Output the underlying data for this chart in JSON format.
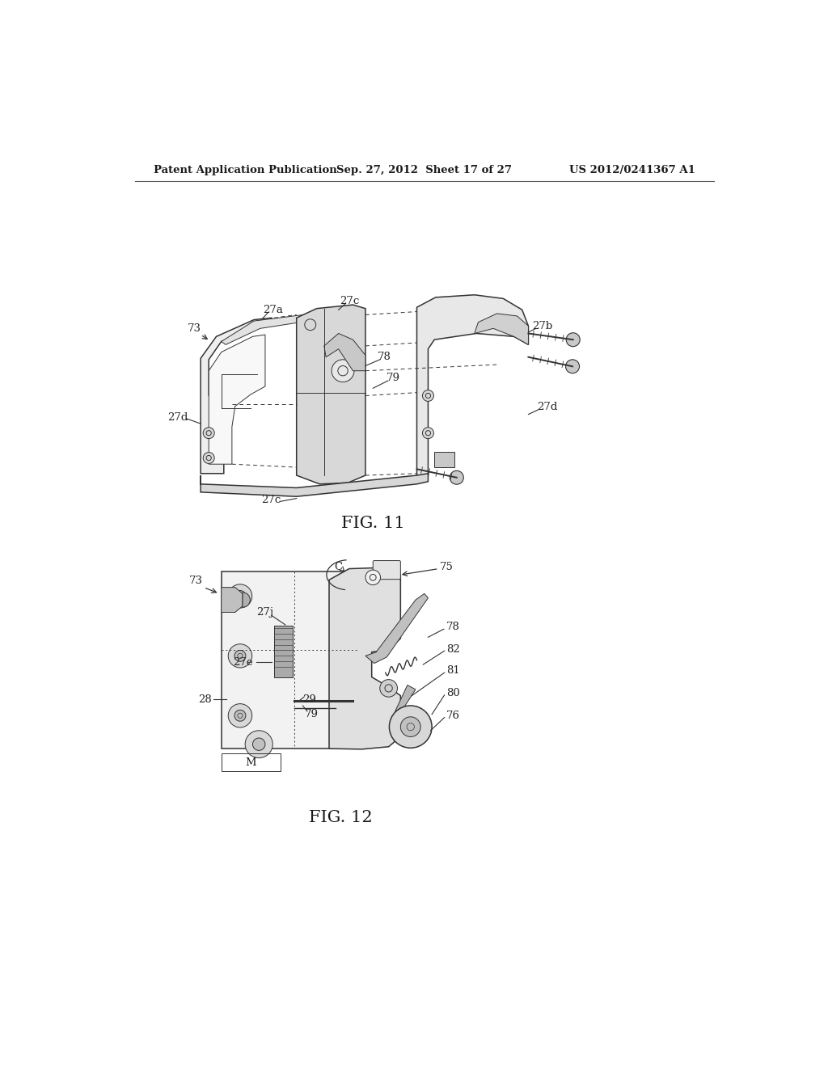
{
  "background_color": "#ffffff",
  "header_left": "Patent Application Publication",
  "header_center": "Sep. 27, 2012  Sheet 17 of 27",
  "header_right": "US 2012/0241367 A1",
  "fig11_caption": "FIG. 11",
  "fig12_caption": "FIG. 12"
}
